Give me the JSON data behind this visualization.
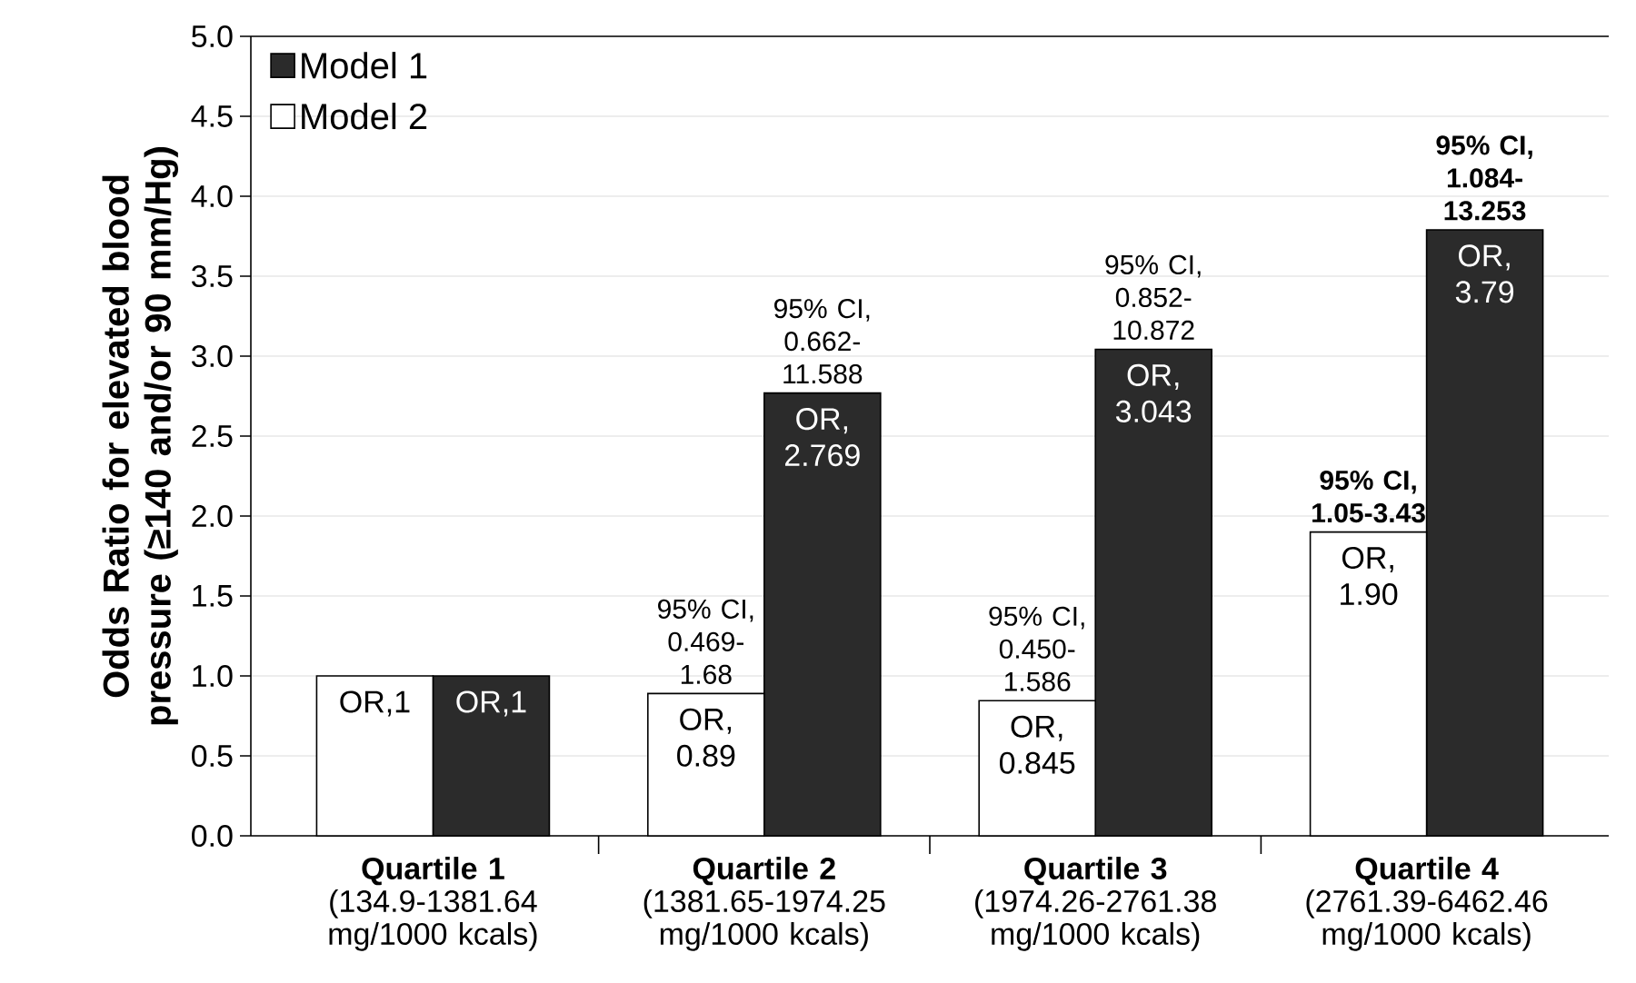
{
  "chart_data": {
    "type": "bar",
    "ylabel": "Odds Ratio for elevated blood pressure (≥140 and/or 90 mm/Hg)",
    "categories": [
      "**Quartile 1** (134.9-1381.64 mg/1000 kcals)",
      "**Quartile 2** (1381.65-1974.25 mg/1000 kcals)",
      "**Quartile 3** (1974.26-2761.38 mg/1000 kcals)",
      "**Quartile 4** (2761.39-6462.46 mg/1000 kcals)"
    ],
    "series": [
      {
        "name": "Model 1",
        "color": "#2b2b2b",
        "values": [
          1,
          2.769,
          3.043,
          3.79
        ],
        "value_labels": [
          "OR,1",
          "OR, 2.769",
          "OR, 3.043",
          "OR, 3.79"
        ]
      },
      {
        "name": "Model 2",
        "color": "#ffffff",
        "values": [
          1,
          0.89,
          0.845,
          1.9
        ],
        "value_labels": [
          "OR,1",
          "OR, 0.89",
          "OR, 0.845",
          "OR, 1.90"
        ]
      }
    ],
    "annotations": [
      "95% CI, 0.469-1.68",
      "95% CI, 0.662-11.588",
      "95% CI, 0.450-1.586",
      "95% CI, 0.852-10.872",
      "**95% CI, 1.05-3.43**",
      "**95% CI, 1.084-13.253**"
    ],
    "ylim": [
      0,
      5
    ],
    "yticks": [
      {
        "value": 0,
        "label": "0.0"
      },
      {
        "value": 0.5,
        "label": "0.5"
      },
      {
        "value": 1,
        "label": "1.0"
      },
      {
        "value": 1.5,
        "label": "1.5"
      },
      {
        "value": 2,
        "label": "2.0"
      },
      {
        "value": 2.5,
        "label": "2.5"
      },
      {
        "value": 3,
        "label": "3.0"
      },
      {
        "value": 3.5,
        "label": "3.5"
      },
      {
        "value": 4,
        "label": "4.0"
      },
      {
        "value": 4.5,
        "label": "4.5"
      },
      {
        "value": 5,
        "label": "5.0"
      }
    ],
    "grid": "y",
    "legend": "top left"
  }
}
